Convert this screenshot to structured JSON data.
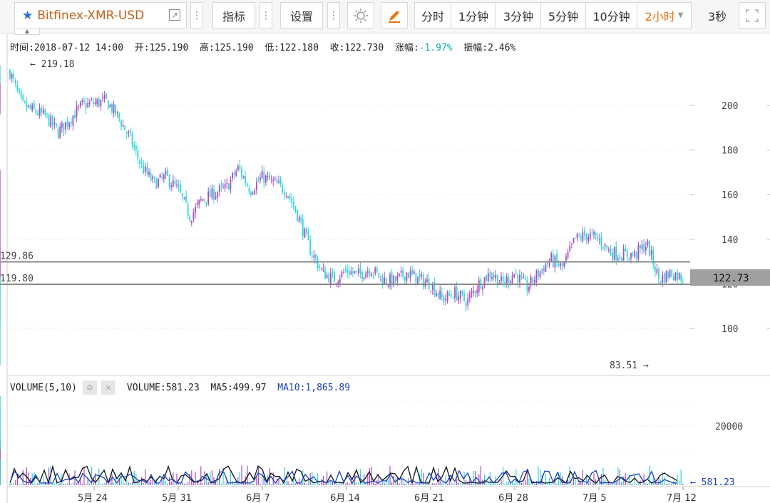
{
  "toolbar": {
    "symbol": "Bitfinex-XMR-USD",
    "indicator_label": "指标",
    "settings_label": "设置",
    "periods": [
      "分时",
      "1分钟",
      "3分钟",
      "5分钟",
      "10分钟",
      "2小时"
    ],
    "active_period": "2小时",
    "refresh": "3秒"
  },
  "info": {
    "time_label": "时间:",
    "time": "2018-07-12 14:00",
    "open_label": "开:",
    "open": "125.190",
    "high_label": "高:",
    "high": "125.190",
    "low_label": "低:",
    "low": "122.180",
    "close_label": "收:",
    "close": "122.730",
    "change_label": "涨幅:",
    "change": "-1.97%",
    "amplitude_label": "振幅:",
    "amplitude": "2.46%"
  },
  "price_chart": {
    "y_ticks": [
      "200",
      "180",
      "160",
      "140",
      "120",
      "100"
    ],
    "max_label": "219.18",
    "min_label": "83.51",
    "current_price": "122.73",
    "line_labels": [
      "129.86",
      "119.80"
    ]
  },
  "volume": {
    "indicator": "VOLUME(5,10)",
    "volume_label": "VOLUME:",
    "volume_value": "581.23",
    "ma5_label": "MA5:",
    "ma5_value": "499.97",
    "ma10_label": "MA10:",
    "ma10_value": "1,865.89",
    "y_tick": "20000",
    "current_label": "581.23"
  },
  "x_axis": [
    "5月 24",
    "5月 31",
    "6月 7",
    "6月 14",
    "6月 21",
    "6月 28",
    "7月 5",
    "7月 12"
  ],
  "colors": {
    "up": "#a94bc2",
    "down": "#2fd6d6",
    "active": "#e8730c",
    "ma10": "#1a3fc0",
    "ma5": "#111111"
  },
  "chart_data": {
    "type": "candlestick",
    "ylim": [
      80,
      225
    ],
    "hlines": [
      129.86,
      119.8
    ],
    "close_series": [
      {
        "date": "2018-05-17",
        "value": 215
      },
      {
        "date": "2018-05-18",
        "value": 200
      },
      {
        "date": "2018-05-20",
        "value": 195
      },
      {
        "date": "2018-05-21",
        "value": 188
      },
      {
        "date": "2018-05-23",
        "value": 200
      },
      {
        "date": "2018-05-25",
        "value": 202
      },
      {
        "date": "2018-05-26",
        "value": 195
      },
      {
        "date": "2018-05-27",
        "value": 185
      },
      {
        "date": "2018-05-28",
        "value": 172
      },
      {
        "date": "2018-05-29",
        "value": 165
      },
      {
        "date": "2018-05-30",
        "value": 168
      },
      {
        "date": "2018-05-31",
        "value": 162
      },
      {
        "date": "2018-06-01",
        "value": 150
      },
      {
        "date": "2018-06-02",
        "value": 158
      },
      {
        "date": "2018-06-04",
        "value": 163
      },
      {
        "date": "2018-06-05",
        "value": 172
      },
      {
        "date": "2018-06-06",
        "value": 162
      },
      {
        "date": "2018-06-07",
        "value": 168
      },
      {
        "date": "2018-06-08",
        "value": 165
      },
      {
        "date": "2018-06-09",
        "value": 162
      },
      {
        "date": "2018-06-10",
        "value": 150
      },
      {
        "date": "2018-06-11",
        "value": 135
      },
      {
        "date": "2018-06-12",
        "value": 125
      },
      {
        "date": "2018-06-13",
        "value": 122
      },
      {
        "date": "2018-06-14",
        "value": 126
      },
      {
        "date": "2018-06-15",
        "value": 124
      },
      {
        "date": "2018-06-16",
        "value": 127
      },
      {
        "date": "2018-06-17",
        "value": 122
      },
      {
        "date": "2018-06-18",
        "value": 121
      },
      {
        "date": "2018-06-19",
        "value": 125
      },
      {
        "date": "2018-06-20",
        "value": 122
      },
      {
        "date": "2018-06-21",
        "value": 120
      },
      {
        "date": "2018-06-22",
        "value": 113
      },
      {
        "date": "2018-06-23",
        "value": 116
      },
      {
        "date": "2018-06-24",
        "value": 112
      },
      {
        "date": "2018-06-25",
        "value": 120
      },
      {
        "date": "2018-06-26",
        "value": 125
      },
      {
        "date": "2018-06-27",
        "value": 120
      },
      {
        "date": "2018-06-28",
        "value": 125
      },
      {
        "date": "2018-06-29",
        "value": 118
      },
      {
        "date": "2018-06-30",
        "value": 125
      },
      {
        "date": "2018-07-01",
        "value": 131
      },
      {
        "date": "2018-07-02",
        "value": 127
      },
      {
        "date": "2018-07-03",
        "value": 140
      },
      {
        "date": "2018-07-04",
        "value": 142
      },
      {
        "date": "2018-07-05",
        "value": 140
      },
      {
        "date": "2018-07-06",
        "value": 134
      },
      {
        "date": "2018-07-07",
        "value": 133
      },
      {
        "date": "2018-07-08",
        "value": 133
      },
      {
        "date": "2018-07-09",
        "value": 138
      },
      {
        "date": "2018-07-10",
        "value": 122
      },
      {
        "date": "2018-07-11",
        "value": 125
      },
      {
        "date": "2018-07-12",
        "value": 122.73
      }
    ]
  }
}
